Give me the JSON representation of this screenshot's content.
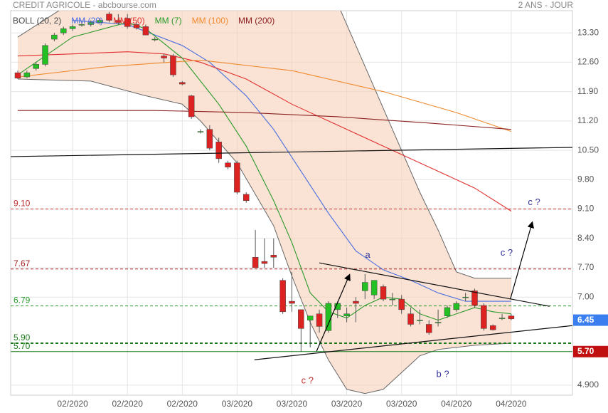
{
  "chart_data": {
    "type": "candlestick",
    "title": "CREDIT AGRICOLE - abcbourse.com",
    "period": "2 ANS - JOUR",
    "categories": [
      null,
      null,
      null,
      null,
      null,
      null,
      "02/2020",
      null,
      null,
      null,
      null,
      null,
      "02/2020",
      null,
      null,
      null,
      null,
      null,
      "02/2020",
      null,
      null,
      null,
      null,
      null,
      "03/2020",
      null,
      null,
      null,
      null,
      null,
      "03/2020",
      null,
      null,
      null,
      null,
      null,
      "03/2020",
      null,
      null,
      null,
      null,
      null,
      "03/2020",
      null,
      null,
      null,
      null,
      null,
      "04/2020",
      null,
      null,
      null,
      null,
      null,
      "04/2020"
    ],
    "open": [
      12.35,
      12.25,
      12.45,
      12.55,
      13.15,
      13.3,
      13.4,
      13.5,
      13.5,
      13.55,
      13.75,
      13.6,
      13.65,
      13.5,
      13.45,
      13.15,
      12.75,
      12.75,
      12.12,
      11.8,
      10.95,
      11.0,
      10.7,
      10.2,
      10.2,
      9.45,
      7.95,
      7.85,
      8.0,
      7.4,
      6.9,
      6.7,
      6.45,
      6.6,
      6.2,
      6.7,
      6.55,
      6.9,
      7.15,
      7.05,
      7.25,
      6.95,
      6.95,
      6.6,
      6.45,
      6.35,
      6.4,
      6.55,
      6.7,
      7.0,
      7.15,
      6.8,
      6.32,
      6.5,
      6.55
    ],
    "high": [
      12.4,
      12.4,
      12.6,
      13.05,
      13.3,
      13.45,
      13.5,
      13.55,
      13.6,
      13.65,
      13.8,
      13.75,
      13.75,
      13.55,
      13.5,
      13.2,
      12.8,
      12.8,
      12.15,
      11.82,
      11.0,
      11.1,
      10.8,
      10.25,
      10.25,
      9.5,
      8.6,
      8.4,
      8.4,
      7.45,
      7.6,
      6.7,
      6.55,
      6.7,
      6.9,
      6.9,
      6.75,
      7.0,
      7.55,
      7.4,
      7.3,
      7.1,
      7.05,
      6.75,
      6.7,
      6.45,
      6.7,
      6.8,
      6.9,
      7.1,
      7.2,
      6.85,
      6.35,
      6.6,
      6.6
    ],
    "low": [
      12.2,
      12.22,
      12.4,
      12.5,
      13.1,
      13.25,
      13.35,
      13.45,
      13.45,
      13.5,
      13.55,
      13.5,
      13.4,
      13.38,
      13.25,
      13.1,
      12.6,
      12.25,
      12.05,
      11.25,
      10.9,
      10.5,
      10.2,
      10.05,
      9.45,
      9.25,
      7.7,
      7.7,
      7.7,
      6.6,
      6.65,
      5.7,
      5.8,
      6.15,
      6.15,
      6.5,
      6.4,
      6.4,
      6.95,
      6.95,
      6.9,
      6.8,
      6.6,
      6.3,
      6.35,
      6.1,
      6.3,
      6.5,
      6.65,
      6.9,
      6.75,
      6.2,
      6.2,
      6.45,
      6.45
    ],
    "close": [
      12.22,
      12.35,
      12.55,
      13.0,
      13.25,
      13.4,
      13.45,
      13.5,
      13.55,
      13.6,
      13.6,
      13.55,
      13.45,
      13.42,
      13.25,
      13.15,
      12.7,
      12.3,
      12.08,
      11.3,
      10.95,
      10.55,
      10.3,
      10.1,
      9.5,
      9.3,
      7.7,
      7.8,
      7.95,
      6.65,
      6.85,
      6.25,
      6.55,
      6.3,
      6.85,
      6.85,
      6.6,
      6.85,
      7.35,
      7.4,
      6.95,
      6.95,
      6.7,
      6.35,
      6.45,
      6.15,
      6.4,
      6.75,
      6.85,
      7.0,
      6.8,
      6.25,
      6.22,
      6.5,
      6.48
    ],
    "up_color": "#22c022",
    "down_color": "#dd2222",
    "ylim": [
      4.66,
      13.83
    ],
    "yticks": [
      {
        "value": 13.3,
        "label": "13.30"
      },
      {
        "value": 12.6,
        "label": "12.60"
      },
      {
        "value": 11.9,
        "label": "11.90"
      },
      {
        "value": 11.2,
        "label": "11.20"
      },
      {
        "value": 10.5,
        "label": "10.50"
      },
      {
        "value": 9.8,
        "label": "9.80"
      },
      {
        "value": 9.1,
        "label": "9.10"
      },
      {
        "value": 8.4,
        "label": "8.40"
      },
      {
        "value": 7.7,
        "label": "7.70"
      },
      {
        "value": 7.0,
        "label": "7.00"
      },
      {
        "value": 4.9,
        "label": "4.900"
      }
    ],
    "grid": true,
    "bollinger": {
      "name": "BOLL (20, 2)",
      "color": "#f6d0b8",
      "upper": {
        "x": [
          0,
          5,
          35,
          38,
          41,
          44,
          46,
          48,
          50,
          54
        ],
        "values": [
          13.2,
          13.9,
          14.0,
          12.5,
          11.0,
          9.5,
          8.6,
          7.6,
          7.45,
          7.45
        ]
      },
      "lower": {
        "x": [
          0,
          8,
          14,
          18,
          20,
          24,
          28,
          30,
          32,
          34,
          36,
          38,
          40,
          42,
          44,
          46,
          50,
          54
        ],
        "values": [
          12.2,
          12.15,
          11.8,
          11.6,
          11.2,
          10.2,
          8.7,
          7.5,
          6.4,
          5.5,
          4.8,
          4.7,
          4.8,
          5.2,
          5.6,
          5.75,
          5.85,
          5.9
        ]
      }
    },
    "series": [
      {
        "name": "MM (20)",
        "color": "#4a6ee0",
        "x": [
          6,
          12,
          18,
          21,
          25,
          28,
          31,
          34,
          37,
          40,
          43,
          46,
          49,
          52,
          54
        ],
        "values": [
          13.6,
          13.5,
          13.0,
          12.6,
          11.8,
          11.0,
          10.0,
          9.0,
          8.1,
          7.65,
          7.4,
          7.1,
          6.9,
          6.9,
          6.9
        ]
      },
      {
        "name": "MM (50)",
        "color": "#e03030",
        "x": [
          0,
          6,
          12,
          16,
          20,
          25,
          30,
          35,
          40,
          45,
          50,
          54
        ],
        "values": [
          12.75,
          12.8,
          12.85,
          12.8,
          12.6,
          12.2,
          11.6,
          11.1,
          10.6,
          10.1,
          9.6,
          9.05
        ]
      },
      {
        "name": "MM (7)",
        "color": "#2a9a2a",
        "x": [
          0,
          6,
          12,
          14,
          18,
          22,
          25,
          28,
          30,
          32,
          34,
          36,
          38,
          40,
          42,
          44,
          46,
          48,
          50,
          52,
          54
        ],
        "values": [
          12.3,
          13.2,
          13.55,
          13.4,
          12.7,
          11.6,
          10.6,
          9.3,
          8.3,
          7.1,
          6.65,
          6.5,
          6.8,
          7.0,
          6.95,
          6.6,
          6.45,
          6.6,
          6.75,
          6.65,
          6.6
        ]
      },
      {
        "name": "MM (100)",
        "color": "#f08a30",
        "x": [
          0,
          10,
          20,
          30,
          40,
          48,
          54
        ],
        "values": [
          12.25,
          12.5,
          12.65,
          12.4,
          11.9,
          11.4,
          10.95
        ]
      },
      {
        "name": "MM (200)",
        "color": "#8b2020",
        "x": [
          0,
          15,
          25,
          35,
          45,
          54
        ],
        "values": [
          11.45,
          11.45,
          11.4,
          11.3,
          11.15,
          11.0
        ]
      }
    ],
    "levels": [
      {
        "value": 9.1,
        "label": "9.10",
        "color": "#c03030",
        "style": "dashed"
      },
      {
        "value": 7.67,
        "label": "7.67",
        "color": "#a02020",
        "style": "dashed"
      },
      {
        "value": 6.79,
        "label": "6.79",
        "color": "#2a9a2a",
        "style": "dashed"
      },
      {
        "value": 5.9,
        "label": "5.90",
        "color": "#1a7a1a",
        "style": "bold-dashed"
      },
      {
        "value": 5.7,
        "label": "5.70",
        "color": "#1a7a1a",
        "style": "solid"
      }
    ],
    "trendlines": [
      {
        "x": [
          -0.78,
          60.7
        ],
        "values": [
          10.35,
          10.57
        ]
      },
      {
        "x": [
          25.9,
          60.7
        ],
        "values": [
          5.505,
          6.32
        ]
      },
      {
        "x": [
          33,
          58.2
        ],
        "values": [
          7.815,
          6.78
        ]
      }
    ],
    "arrows": [
      {
        "x": [
          32.7,
          36.3
        ],
        "values": [
          5.71,
          7.53
        ]
      },
      {
        "x": [
          53.9,
          56.3
        ],
        "values": [
          6.95,
          8.78
        ]
      }
    ],
    "annotations": [
      {
        "text": "a",
        "x": 38.3,
        "y": 8.0,
        "color": "#333399"
      },
      {
        "text": "c ?",
        "x": 56.5,
        "y": 9.25,
        "color": "#333399"
      },
      {
        "text": "c ?",
        "x": 53.5,
        "y": 8.05,
        "color": "#333399"
      },
      {
        "text": "c ?",
        "x": 31.7,
        "y": 5.0,
        "color": "#c03030"
      },
      {
        "text": "b ?",
        "x": 46.5,
        "y": 5.15,
        "color": "#333399"
      }
    ],
    "price_tags": [
      {
        "value": 6.45,
        "label": "6.45",
        "color": "#3a7ef0"
      },
      {
        "value": 5.7,
        "label": "5.70",
        "color": "#c01010"
      }
    ]
  }
}
